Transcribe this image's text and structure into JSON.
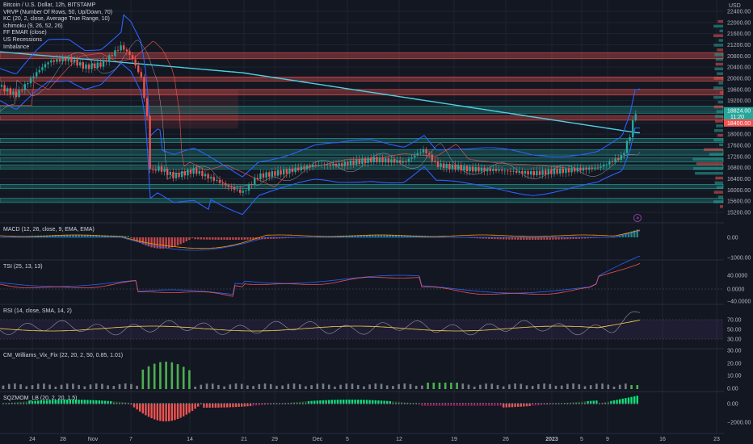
{
  "title": "Bitcoin / U.S. Dollar, 12h, BITSTAMP",
  "indicators": [
    "VRVP (Number Of Rows, 50, Up/Down, 70)",
    "KC (20, 2, close, Average True Range, 10)",
    "Ichimoku (9, 26, 52, 26)",
    "FF EMAR (close)",
    "US Recessions",
    "Imbalance"
  ],
  "currency": "USD",
  "price_axis": [
    "22400.00",
    "22000.00",
    "21600.00",
    "21200.00",
    "20800.00",
    "20400.00",
    "20000.00",
    "19600.00",
    "19200.00",
    "18800.00",
    "18400.00",
    "18000.00",
    "17600.00",
    "17200.00",
    "16800.00",
    "16400.00",
    "16000.00",
    "15600.00",
    "15200.00"
  ],
  "price_tags": {
    "last": "18824.00",
    "countdown": "11:20",
    "level": "18400.00"
  },
  "time_axis": [
    "24",
    "28",
    "Nov",
    "7",
    "14",
    "21",
    "29",
    "Dec",
    "5",
    "12",
    "19",
    "26",
    "2023",
    "5",
    "9",
    "16",
    "23"
  ],
  "colors": {
    "up": "#26a69a",
    "down": "#ef5350",
    "bg": "#131722",
    "grid": "#1f2330",
    "blue": "#2962ff",
    "cyan": "#4dd0e1"
  },
  "panes": [
    {
      "label": "MACD (12, 26, close, 9, EMA, EMA)",
      "ticks": [
        "0.00",
        "−1000.00"
      ]
    },
    {
      "label": "TSI (25, 13, 13)",
      "ticks": [
        "40.0000",
        "0.0000",
        "−40.0000"
      ]
    },
    {
      "label": "RSI (14, close, SMA, 14, 2)",
      "ticks": [
        "70.00",
        "50.00",
        "30.00"
      ]
    },
    {
      "label": "CM_Williams_Vix_Fix (22, 20, 2, 50, 0.85, 1.01)",
      "ticks": [
        "30.00",
        "20.00",
        "10.00",
        "0.00"
      ]
    },
    {
      "label": "SQZMOM_LB (20, 2, 20, 1.5)",
      "ticks": [
        "0.00",
        "−2000.00"
      ]
    }
  ],
  "alert_icon": "lightning-icon"
}
